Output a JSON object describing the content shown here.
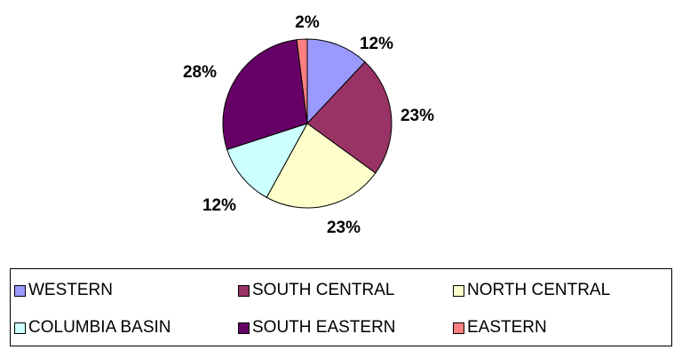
{
  "chart_data": {
    "type": "pie",
    "title": "",
    "slices": [
      {
        "name": "WESTERN",
        "value": 12,
        "label": "12%",
        "color": "#9999FF"
      },
      {
        "name": "SOUTH CENTRAL",
        "value": 23,
        "label": "23%",
        "color": "#993366"
      },
      {
        "name": "NORTH CENTRAL",
        "value": 23,
        "label": "23%",
        "color": "#FFFFCC"
      },
      {
        "name": "COLUMBIA BASIN",
        "value": 12,
        "label": "12%",
        "color": "#CCFFFF"
      },
      {
        "name": "SOUTH EASTERN",
        "value": 28,
        "label": "28%",
        "color": "#660066"
      },
      {
        "name": "EASTERN",
        "value": 2,
        "label": "2%",
        "color": "#FF8080"
      }
    ],
    "legend_position": "bottom",
    "start_angle": "12 o'clock, clockwise"
  }
}
